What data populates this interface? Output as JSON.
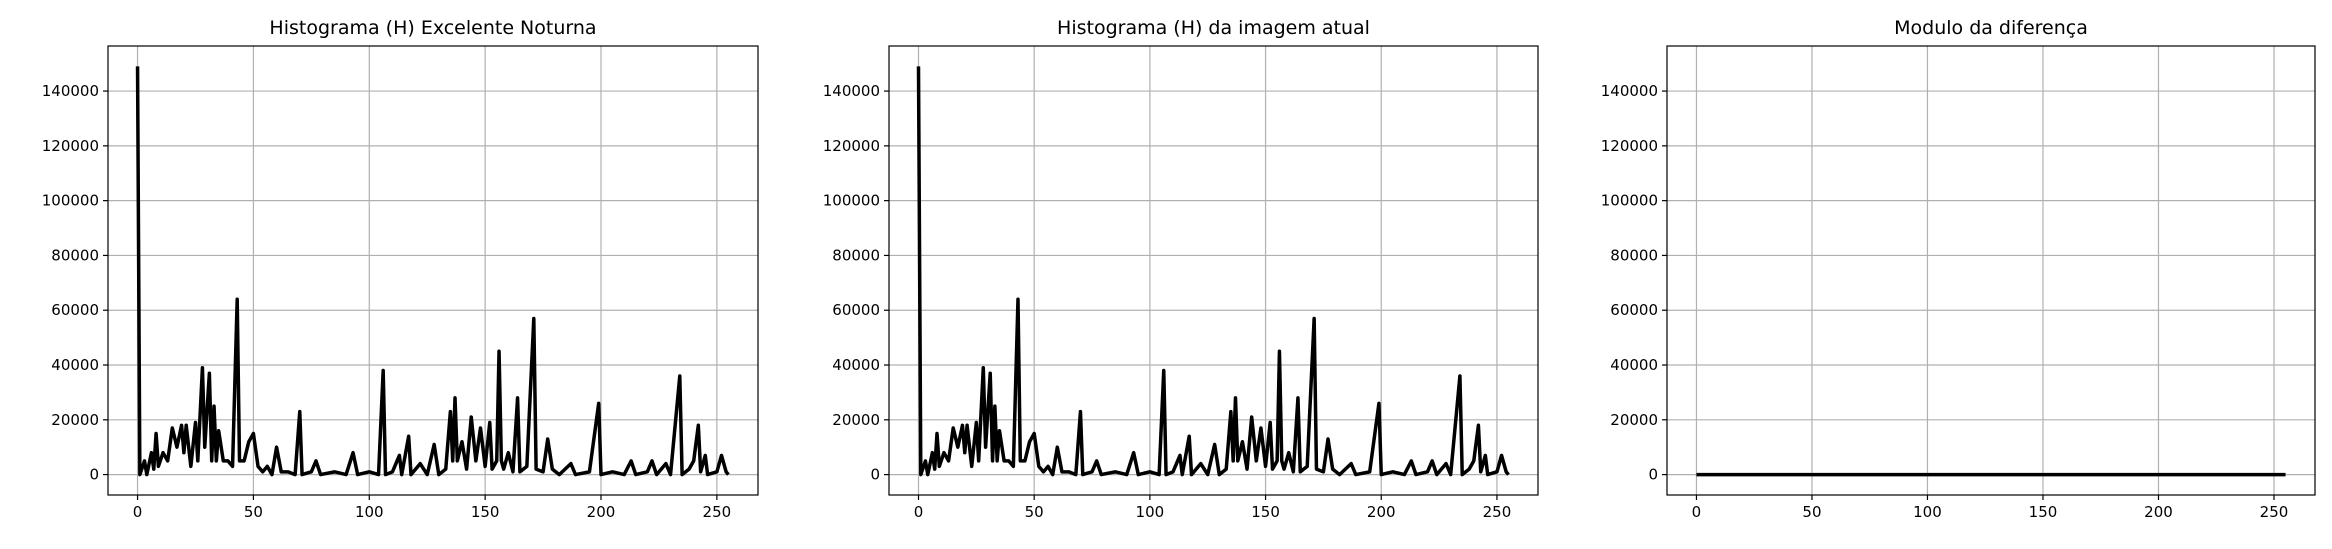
{
  "chart_data": [
    {
      "type": "line",
      "title": "Histograma (H) Excelente Noturna",
      "color": "#000000",
      "grid": true,
      "x": [
        0,
        1,
        3,
        4,
        6,
        7,
        8,
        9,
        11,
        13,
        15,
        17,
        19,
        20,
        21,
        23,
        25,
        26,
        28,
        29,
        31,
        32,
        33,
        34,
        35,
        37,
        39,
        41,
        43,
        44,
        46,
        48,
        50,
        52,
        54,
        56,
        58,
        60,
        62,
        65,
        68,
        70,
        71,
        75,
        77,
        79,
        85,
        90,
        93,
        95,
        100,
        104,
        106,
        107,
        110,
        113,
        114,
        117,
        118,
        122,
        125,
        128,
        130,
        133,
        135,
        136,
        137,
        138,
        140,
        142,
        144,
        146,
        148,
        150,
        152,
        153,
        155,
        156,
        157,
        158,
        160,
        162,
        164,
        165,
        168,
        171,
        172,
        175,
        177,
        179,
        182,
        187,
        189,
        195,
        199,
        200,
        205,
        210,
        213,
        215,
        220,
        222,
        224,
        228,
        230,
        234,
        235,
        238,
        240,
        242,
        243,
        245,
        246,
        250,
        252,
        254,
        255
      ],
      "values": [
        149000,
        0,
        5000,
        0,
        8000,
        2000,
        15000,
        3000,
        8000,
        5000,
        17000,
        10000,
        18000,
        8000,
        18000,
        3000,
        19000,
        5000,
        39000,
        10000,
        37000,
        5000,
        25000,
        5000,
        16000,
        5000,
        5000,
        3000,
        64000,
        5000,
        5000,
        12000,
        15000,
        3000,
        1000,
        3000,
        0,
        10000,
        1000,
        1000,
        0,
        23000,
        0,
        1000,
        5000,
        0,
        1000,
        0,
        8000,
        0,
        1000,
        0,
        38000,
        0,
        1000,
        7000,
        0,
        14000,
        0,
        4000,
        0,
        11000,
        0,
        2000,
        23000,
        5000,
        28000,
        5000,
        12000,
        2000,
        21000,
        5000,
        17000,
        3000,
        19000,
        2000,
        5000,
        45000,
        5000,
        2000,
        8000,
        1000,
        28000,
        1000,
        3000,
        57000,
        2000,
        1000,
        13000,
        2000,
        0,
        4000,
        0,
        1000,
        26000,
        0,
        1000,
        0,
        5000,
        0,
        1000,
        5000,
        0,
        4000,
        0,
        36000,
        0,
        2000,
        5000,
        18000,
        1000,
        7000,
        0,
        1000,
        7000,
        1000,
        0
      ],
      "xlim": [
        -12.75,
        267.75
      ],
      "xticks": [
        0,
        50,
        100,
        150,
        200,
        250
      ],
      "ylim": [
        -7450,
        156450
      ],
      "yticks": [
        0,
        20000,
        40000,
        60000,
        80000,
        100000,
        120000,
        140000
      ]
    },
    {
      "type": "line",
      "title": "Histograma (H) da imagem atual",
      "color": "#000000",
      "grid": true,
      "x": [
        0,
        1,
        3,
        4,
        6,
        7,
        8,
        9,
        11,
        13,
        15,
        17,
        19,
        20,
        21,
        23,
        25,
        26,
        28,
        29,
        31,
        32,
        33,
        34,
        35,
        37,
        39,
        41,
        43,
        44,
        46,
        48,
        50,
        52,
        54,
        56,
        58,
        60,
        62,
        65,
        68,
        70,
        71,
        75,
        77,
        79,
        85,
        90,
        93,
        95,
        100,
        104,
        106,
        107,
        110,
        113,
        114,
        117,
        118,
        122,
        125,
        128,
        130,
        133,
        135,
        136,
        137,
        138,
        140,
        142,
        144,
        146,
        148,
        150,
        152,
        153,
        155,
        156,
        157,
        158,
        160,
        162,
        164,
        165,
        168,
        171,
        172,
        175,
        177,
        179,
        182,
        187,
        189,
        195,
        199,
        200,
        205,
        210,
        213,
        215,
        220,
        222,
        224,
        228,
        230,
        234,
        235,
        238,
        240,
        242,
        243,
        245,
        246,
        250,
        252,
        254,
        255
      ],
      "values": [
        149000,
        0,
        5000,
        0,
        8000,
        2000,
        15000,
        3000,
        8000,
        5000,
        17000,
        10000,
        18000,
        8000,
        18000,
        3000,
        19000,
        5000,
        39000,
        10000,
        37000,
        5000,
        25000,
        5000,
        16000,
        5000,
        5000,
        3000,
        64000,
        5000,
        5000,
        12000,
        15000,
        3000,
        1000,
        3000,
        0,
        10000,
        1000,
        1000,
        0,
        23000,
        0,
        1000,
        5000,
        0,
        1000,
        0,
        8000,
        0,
        1000,
        0,
        38000,
        0,
        1000,
        7000,
        0,
        14000,
        0,
        4000,
        0,
        11000,
        0,
        2000,
        23000,
        5000,
        28000,
        5000,
        12000,
        2000,
        21000,
        5000,
        17000,
        3000,
        19000,
        2000,
        5000,
        45000,
        5000,
        2000,
        8000,
        1000,
        28000,
        1000,
        3000,
        57000,
        2000,
        1000,
        13000,
        2000,
        0,
        4000,
        0,
        1000,
        26000,
        0,
        1000,
        0,
        5000,
        0,
        1000,
        5000,
        0,
        4000,
        0,
        36000,
        0,
        2000,
        5000,
        18000,
        1000,
        7000,
        0,
        1000,
        7000,
        1000,
        0
      ],
      "xlim": [
        -12.75,
        267.75
      ],
      "xticks": [
        0,
        50,
        100,
        150,
        200,
        250
      ],
      "ylim": [
        -7450,
        156450
      ],
      "yticks": [
        0,
        20000,
        40000,
        60000,
        80000,
        100000,
        120000,
        140000
      ]
    },
    {
      "type": "line",
      "title": "Modulo da diferença",
      "color": "#000000",
      "grid": true,
      "x": [
        0,
        255
      ],
      "values": [
        0,
        0
      ],
      "xlim": [
        -12.75,
        267.75
      ],
      "xticks": [
        0,
        50,
        100,
        150,
        200,
        250
      ],
      "ylim": [
        -7450,
        156450
      ],
      "yticks": [
        0,
        20000,
        40000,
        60000,
        80000,
        100000,
        120000,
        140000
      ]
    }
  ]
}
